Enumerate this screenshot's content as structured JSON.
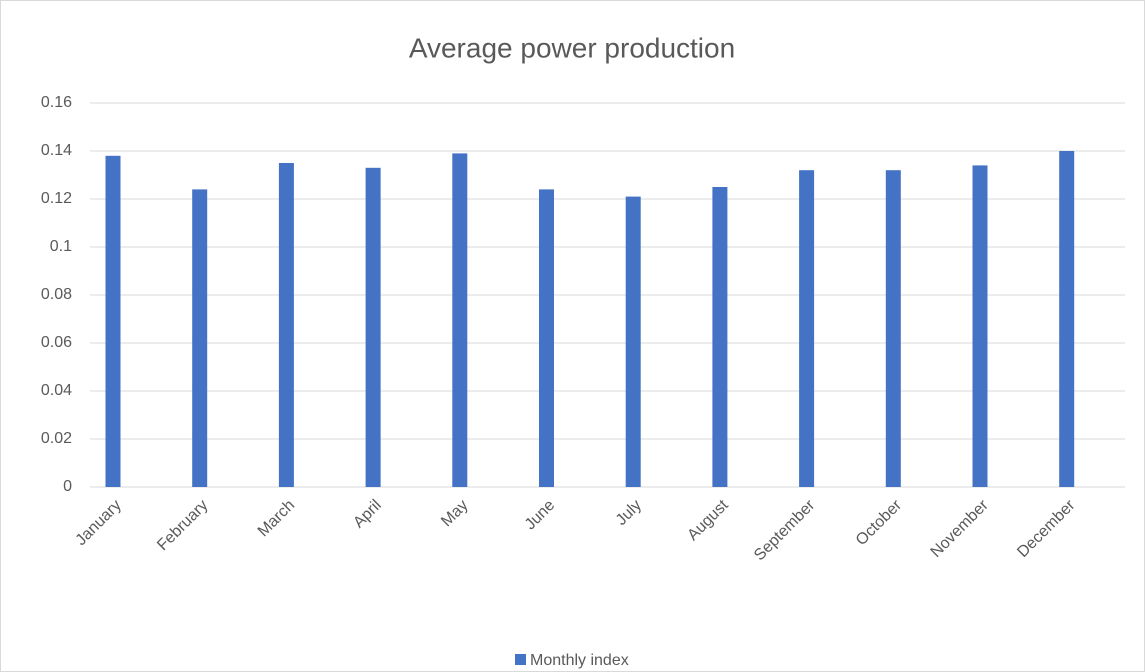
{
  "chart_data": {
    "type": "bar",
    "title": "Average power production",
    "categories": [
      "January",
      "February",
      "March",
      "April",
      "May",
      "June",
      "July",
      "August",
      "September",
      "October",
      "November",
      "December"
    ],
    "series": [
      {
        "name": "Monthly index",
        "color": "#4472c4",
        "values": [
          0.138,
          0.124,
          0.135,
          0.133,
          0.139,
          0.124,
          0.121,
          0.125,
          0.132,
          0.132,
          0.134,
          0.14
        ]
      }
    ],
    "ylim": [
      0,
      0.16
    ],
    "yticks": [
      0,
      0.02,
      0.04,
      0.06,
      0.08,
      0.1,
      0.12,
      0.14,
      0.16
    ],
    "grid": true,
    "legend": "bottom"
  }
}
